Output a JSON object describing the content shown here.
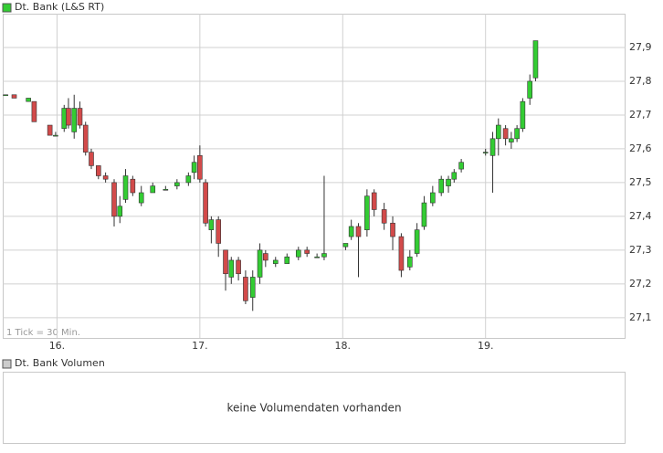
{
  "chart_data": {
    "type": "candlestick",
    "title": "Dt. Bank (L&S RT)",
    "note": "1 Tick = 30 Min.",
    "volume_title": "Dt. Bank Volumen",
    "volume_message": "keine Volumendaten vorhanden",
    "up_color": "#33cc33",
    "down_color": "#d24a4a",
    "grid": true,
    "xlim": [
      15.62,
      19.98
    ],
    "ylim": [
      27.04,
      28.0
    ],
    "xticks": [
      {
        "value": 16,
        "label": "16."
      },
      {
        "value": 17,
        "label": "17."
      },
      {
        "value": 18,
        "label": "18."
      },
      {
        "value": 19,
        "label": "19."
      }
    ],
    "yticks": [
      {
        "value": 27.1,
        "label": "27,1"
      },
      {
        "value": 27.2,
        "label": "27,2"
      },
      {
        "value": 27.3,
        "label": "27,3"
      },
      {
        "value": 27.4,
        "label": "27,4"
      },
      {
        "value": 27.5,
        "label": "27,5"
      },
      {
        "value": 27.6,
        "label": "27,6"
      },
      {
        "value": 27.7,
        "label": "27,7"
      },
      {
        "value": 27.8,
        "label": "27,8"
      },
      {
        "value": 27.9,
        "label": "27,9"
      }
    ],
    "x": [
      15.64,
      15.7,
      15.8,
      15.84,
      15.95,
      15.99,
      16.05,
      16.08,
      16.12,
      16.16,
      16.2,
      16.24,
      16.29,
      16.34,
      16.4,
      16.44,
      16.48,
      16.53,
      16.59,
      16.67,
      16.76,
      16.84,
      16.92,
      16.96,
      17.0,
      17.04,
      17.08,
      17.13,
      17.18,
      17.22,
      17.27,
      17.32,
      17.37,
      17.42,
      17.46,
      17.53,
      17.61,
      17.69,
      17.75,
      17.82,
      17.87,
      18.02,
      18.06,
      18.11,
      18.17,
      18.22,
      18.29,
      18.35,
      18.41,
      18.47,
      18.52,
      18.57,
      18.63,
      18.69,
      18.74,
      18.78,
      18.83,
      19.0,
      19.05,
      19.09,
      19.14,
      19.18,
      19.22,
      19.26,
      19.31,
      19.35
    ],
    "open": [
      27.76,
      27.76,
      27.74,
      27.74,
      27.67,
      27.64,
      27.66,
      27.72,
      27.65,
      27.72,
      27.67,
      27.59,
      27.55,
      27.52,
      27.5,
      27.4,
      27.45,
      27.51,
      27.44,
      27.47,
      27.48,
      27.49,
      27.5,
      27.53,
      27.58,
      27.5,
      27.36,
      27.39,
      27.3,
      27.22,
      27.27,
      27.22,
      27.16,
      27.22,
      27.29,
      27.26,
      27.26,
      27.28,
      27.3,
      27.28,
      27.28,
      27.31,
      27.34,
      27.37,
      27.36,
      27.47,
      27.42,
      27.38,
      27.34,
      27.25,
      27.29,
      27.37,
      27.44,
      27.47,
      27.49,
      27.51,
      27.54,
      27.59,
      27.58,
      27.63,
      27.66,
      27.62,
      27.63,
      27.66,
      27.75,
      27.81
    ],
    "high": [
      27.76,
      27.76,
      27.75,
      27.74,
      27.67,
      27.65,
      27.73,
      27.75,
      27.76,
      27.74,
      27.68,
      27.6,
      27.55,
      27.53,
      27.51,
      27.46,
      27.54,
      27.52,
      27.49,
      27.5,
      27.49,
      27.51,
      27.53,
      27.58,
      27.61,
      27.51,
      27.4,
      27.4,
      27.3,
      27.28,
      27.28,
      27.24,
      27.24,
      27.32,
      27.3,
      27.28,
      27.29,
      27.31,
      27.31,
      27.29,
      27.52,
      27.32,
      27.39,
      27.38,
      27.48,
      27.48,
      27.44,
      27.4,
      27.35,
      27.3,
      27.38,
      27.46,
      27.49,
      27.52,
      27.52,
      27.54,
      27.57,
      27.6,
      27.65,
      27.69,
      27.67,
      27.65,
      27.67,
      27.75,
      27.82,
      27.92
    ],
    "low": [
      27.76,
      27.75,
      27.74,
      27.68,
      27.64,
      27.64,
      27.65,
      27.66,
      27.63,
      27.66,
      27.58,
      27.54,
      27.51,
      27.5,
      27.37,
      27.38,
      27.44,
      27.46,
      27.43,
      27.47,
      27.48,
      27.48,
      27.49,
      27.51,
      27.5,
      27.37,
      27.32,
      27.28,
      27.18,
      27.2,
      27.21,
      27.14,
      27.12,
      27.2,
      27.25,
      27.25,
      27.26,
      27.27,
      27.28,
      27.28,
      27.27,
      27.3,
      27.33,
      27.22,
      27.34,
      27.4,
      27.36,
      27.3,
      27.22,
      27.24,
      27.28,
      27.36,
      27.43,
      27.46,
      27.47,
      27.5,
      27.53,
      27.58,
      27.47,
      27.58,
      27.61,
      27.6,
      27.62,
      27.65,
      27.73,
      27.8
    ],
    "close": [
      27.76,
      27.75,
      27.75,
      27.68,
      27.64,
      27.64,
      27.72,
      27.67,
      27.72,
      27.67,
      27.59,
      27.55,
      27.52,
      27.51,
      27.4,
      27.43,
      27.52,
      27.47,
      27.47,
      27.49,
      27.48,
      27.5,
      27.52,
      27.56,
      27.51,
      27.38,
      27.39,
      27.32,
      27.23,
      27.27,
      27.23,
      27.15,
      27.22,
      27.3,
      27.27,
      27.27,
      27.28,
      27.3,
      27.29,
      27.28,
      27.29,
      27.32,
      27.37,
      27.34,
      27.46,
      27.42,
      27.38,
      27.34,
      27.24,
      27.28,
      27.36,
      27.44,
      27.47,
      27.51,
      27.51,
      27.53,
      27.56,
      27.59,
      27.63,
      27.67,
      27.63,
      27.63,
      27.66,
      27.74,
      27.8,
      27.92
    ]
  }
}
